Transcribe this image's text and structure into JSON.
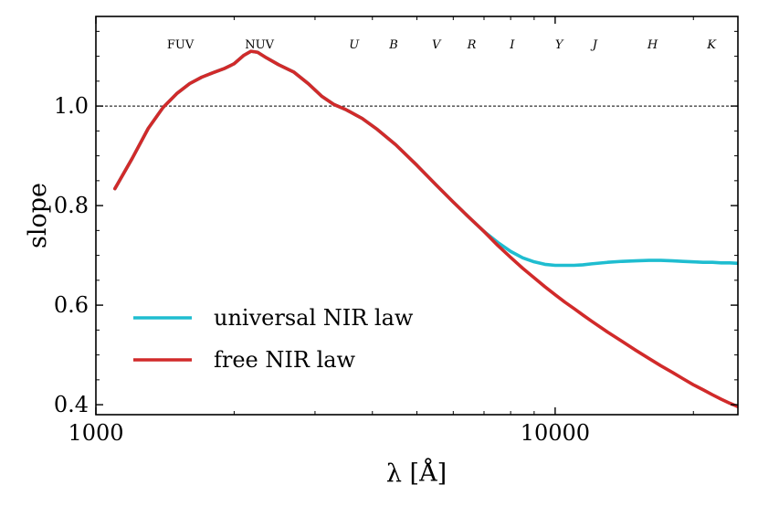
{
  "chart_data": {
    "type": "line",
    "title": "",
    "xlabel": "λ [Å]",
    "ylabel": "slope",
    "xscale": "log",
    "xlim": [
      1000,
      25000
    ],
    "ylim": [
      0.38,
      1.18
    ],
    "x_ticks": [
      1000,
      10000
    ],
    "x_tick_labels": [
      "1000",
      "10000"
    ],
    "y_ticks": [
      0.4,
      0.6,
      0.8,
      1.0
    ],
    "y_tick_labels": [
      "0.4",
      "0.6",
      "0.8",
      "1.0"
    ],
    "reference_line": {
      "y": 1.0,
      "style": "dashed"
    },
    "bands": [
      {
        "name": "FUV",
        "wavelength": 1528,
        "italic": false
      },
      {
        "name": "NUV",
        "wavelength": 2271,
        "italic": false
      },
      {
        "name": "U",
        "wavelength": 3650,
        "italic": true
      },
      {
        "name": "B",
        "wavelength": 4450,
        "italic": true
      },
      {
        "name": "V",
        "wavelength": 5510,
        "italic": true
      },
      {
        "name": "R",
        "wavelength": 6580,
        "italic": true
      },
      {
        "name": "I",
        "wavelength": 8060,
        "italic": true
      },
      {
        "name": "Y",
        "wavelength": 10200,
        "italic": true
      },
      {
        "name": "J",
        "wavelength": 12200,
        "italic": true
      },
      {
        "name": "H",
        "wavelength": 16300,
        "italic": true
      },
      {
        "name": "K",
        "wavelength": 21900,
        "italic": true
      }
    ],
    "legend_position": "lower-left",
    "series": [
      {
        "name": "universal NIR law",
        "color": "#1fbdd0",
        "x": [
          1100,
          1200,
          1300,
          1400,
          1500,
          1600,
          1700,
          1800,
          1900,
          2000,
          2100,
          2175,
          2250,
          2350,
          2500,
          2700,
          2900,
          3100,
          3300,
          3500,
          3800,
          4100,
          4500,
          5000,
          5500,
          6000,
          6500,
          7000,
          7500,
          8000,
          8500,
          9000,
          9500,
          10000,
          10500,
          11000,
          11500,
          12000,
          13000,
          14000,
          15000,
          16000,
          17000,
          18000,
          19000,
          20000,
          21000,
          22000,
          23000,
          24000,
          25000
        ],
        "y": [
          0.834,
          0.895,
          0.955,
          0.997,
          1.025,
          1.045,
          1.058,
          1.067,
          1.075,
          1.085,
          1.102,
          1.11,
          1.108,
          1.097,
          1.083,
          1.068,
          1.045,
          1.02,
          1.003,
          0.993,
          0.975,
          0.953,
          0.922,
          0.881,
          0.842,
          0.807,
          0.776,
          0.748,
          0.726,
          0.708,
          0.695,
          0.687,
          0.682,
          0.68,
          0.68,
          0.68,
          0.681,
          0.683,
          0.686,
          0.688,
          0.689,
          0.69,
          0.69,
          0.689,
          0.688,
          0.687,
          0.686,
          0.686,
          0.685,
          0.685,
          0.684
        ]
      },
      {
        "name": "free NIR law",
        "color": "#d12a2a",
        "x": [
          1100,
          1200,
          1300,
          1400,
          1500,
          1600,
          1700,
          1800,
          1900,
          2000,
          2100,
          2175,
          2250,
          2350,
          2500,
          2700,
          2900,
          3100,
          3300,
          3500,
          3800,
          4100,
          4500,
          5000,
          5500,
          6000,
          6500,
          7000,
          7500,
          8000,
          8500,
          9000,
          9500,
          10000,
          10500,
          11000,
          11500,
          12000,
          13000,
          14000,
          15000,
          16000,
          17000,
          18000,
          19000,
          20000,
          21000,
          22000,
          23000,
          24000,
          25000
        ],
        "y": [
          0.834,
          0.895,
          0.955,
          0.997,
          1.025,
          1.045,
          1.058,
          1.067,
          1.075,
          1.085,
          1.102,
          1.11,
          1.108,
          1.097,
          1.083,
          1.068,
          1.045,
          1.02,
          1.003,
          0.993,
          0.975,
          0.953,
          0.922,
          0.881,
          0.842,
          0.807,
          0.776,
          0.748,
          0.72,
          0.696,
          0.674,
          0.655,
          0.637,
          0.621,
          0.606,
          0.593,
          0.58,
          0.568,
          0.546,
          0.527,
          0.509,
          0.493,
          0.478,
          0.465,
          0.452,
          0.44,
          0.43,
          0.42,
          0.411,
          0.403,
          0.396
        ]
      }
    ]
  }
}
